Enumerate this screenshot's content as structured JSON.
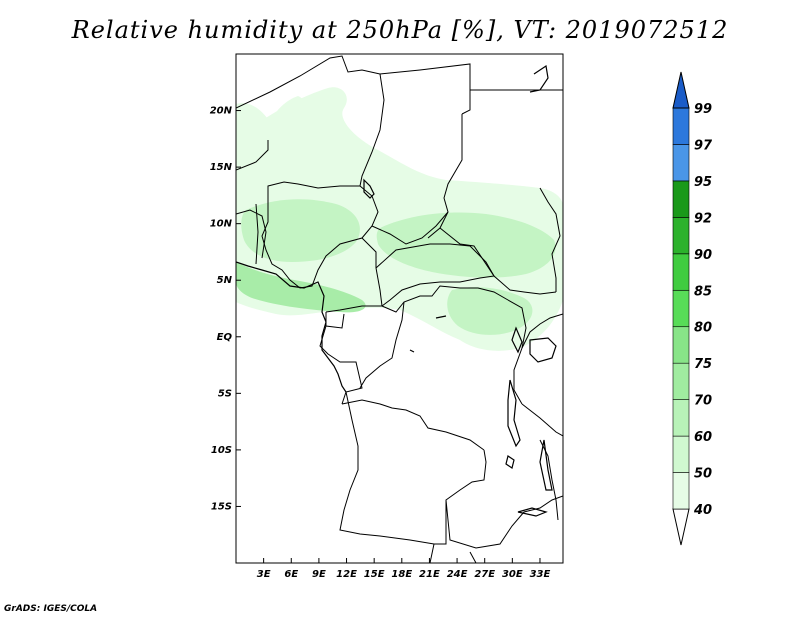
{
  "title": "Relative humidity at 250hPa [%], VT: 2019072512",
  "credit": "GrADS: IGES/COLA",
  "map": {
    "lon_range": [
      0,
      35.5
    ],
    "lat_range": [
      -20,
      25
    ],
    "lat_ticks": [
      {
        "value": 20,
        "label": "20N"
      },
      {
        "value": 15,
        "label": "15N"
      },
      {
        "value": 10,
        "label": "10N"
      },
      {
        "value": 5,
        "label": "5N"
      },
      {
        "value": 0,
        "label": "EQ"
      },
      {
        "value": -5,
        "label": "5S"
      },
      {
        "value": -10,
        "label": "10S"
      },
      {
        "value": -15,
        "label": "15S"
      }
    ],
    "lon_ticks": [
      {
        "value": 3,
        "label": "3E"
      },
      {
        "value": 6,
        "label": "6E"
      },
      {
        "value": 9,
        "label": "9E"
      },
      {
        "value": 12,
        "label": "12E"
      },
      {
        "value": 15,
        "label": "15E"
      },
      {
        "value": 18,
        "label": "18E"
      },
      {
        "value": 21,
        "label": "21E"
      },
      {
        "value": 24,
        "label": "24E"
      },
      {
        "value": 27,
        "label": "27E"
      },
      {
        "value": 30,
        "label": "30E"
      },
      {
        "value": 33,
        "label": "33E"
      }
    ]
  },
  "colorbar": {
    "levels": [
      {
        "label": "40",
        "color": "#e6fce6"
      },
      {
        "label": "50",
        "color": "#d0f8d0"
      },
      {
        "label": "60",
        "color": "#b8f2b8"
      },
      {
        "label": "70",
        "color": "#a0eca0"
      },
      {
        "label": "75",
        "color": "#88e488"
      },
      {
        "label": "80",
        "color": "#58dc58"
      },
      {
        "label": "85",
        "color": "#40cc40"
      },
      {
        "label": "90",
        "color": "#2cb22c"
      },
      {
        "label": "92",
        "color": "#1a991a"
      },
      {
        "label": "95",
        "color": "#4a96e8"
      },
      {
        "label": "97",
        "color": "#2c78dc"
      },
      {
        "label": "99",
        "color": "#1a5cc8"
      }
    ]
  },
  "colors": {
    "lightest_green": "#e6fce6",
    "light_green": "#c4f4c4",
    "mid_green": "#a8eca8",
    "border": "#000000"
  }
}
